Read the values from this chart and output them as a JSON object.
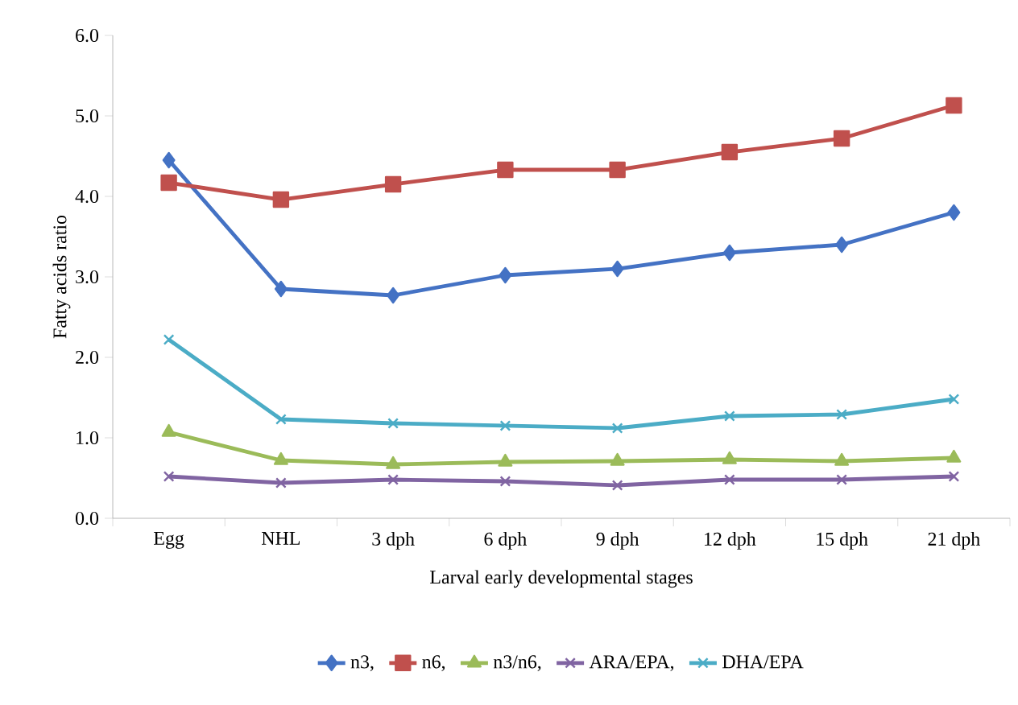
{
  "chart_data": {
    "type": "line",
    "xlabel": "Larval early developmental stages",
    "ylabel": "Fatty acids ratio",
    "categories": [
      "Egg",
      "NHL",
      "3 dph",
      "6 dph",
      "9 dph",
      "12 dph",
      "15 dph",
      "21 dph"
    ],
    "series": [
      {
        "name": "n3,",
        "color": "#4472c4",
        "marker": "diamond",
        "values": [
          4.45,
          2.85,
          2.77,
          3.02,
          3.1,
          3.3,
          3.4,
          3.8
        ]
      },
      {
        "name": "n6,",
        "color": "#c0504d",
        "marker": "square",
        "values": [
          4.17,
          3.96,
          4.15,
          4.33,
          4.33,
          4.55,
          4.72,
          5.13
        ]
      },
      {
        "name": "n3/n6,",
        "color": "#9bbb59",
        "marker": "triangle",
        "values": [
          1.07,
          0.72,
          0.67,
          0.7,
          0.71,
          0.73,
          0.71,
          0.75
        ]
      },
      {
        "name": "ARA/EPA,",
        "color": "#8064a2",
        "marker": "cross",
        "values": [
          0.52,
          0.44,
          0.48,
          0.46,
          0.41,
          0.48,
          0.48,
          0.52
        ]
      },
      {
        "name": "DHA/EPA",
        "color": "#4bacc6",
        "marker": "cross",
        "values": [
          2.22,
          1.23,
          1.18,
          1.15,
          1.12,
          1.27,
          1.29,
          1.48
        ]
      }
    ],
    "ylim": [
      0,
      6
    ],
    "yticks": [
      {
        "value": 0,
        "label": "0.0"
      },
      {
        "value": 1,
        "label": "1.0"
      },
      {
        "value": 2,
        "label": "2.0"
      },
      {
        "value": 3,
        "label": "3.0"
      },
      {
        "value": 4,
        "label": "4.0"
      },
      {
        "value": 5,
        "label": "5.0"
      },
      {
        "value": 6,
        "label": "6.0"
      }
    ],
    "grid": false,
    "legend": "bottom",
    "line_style": "solid"
  }
}
